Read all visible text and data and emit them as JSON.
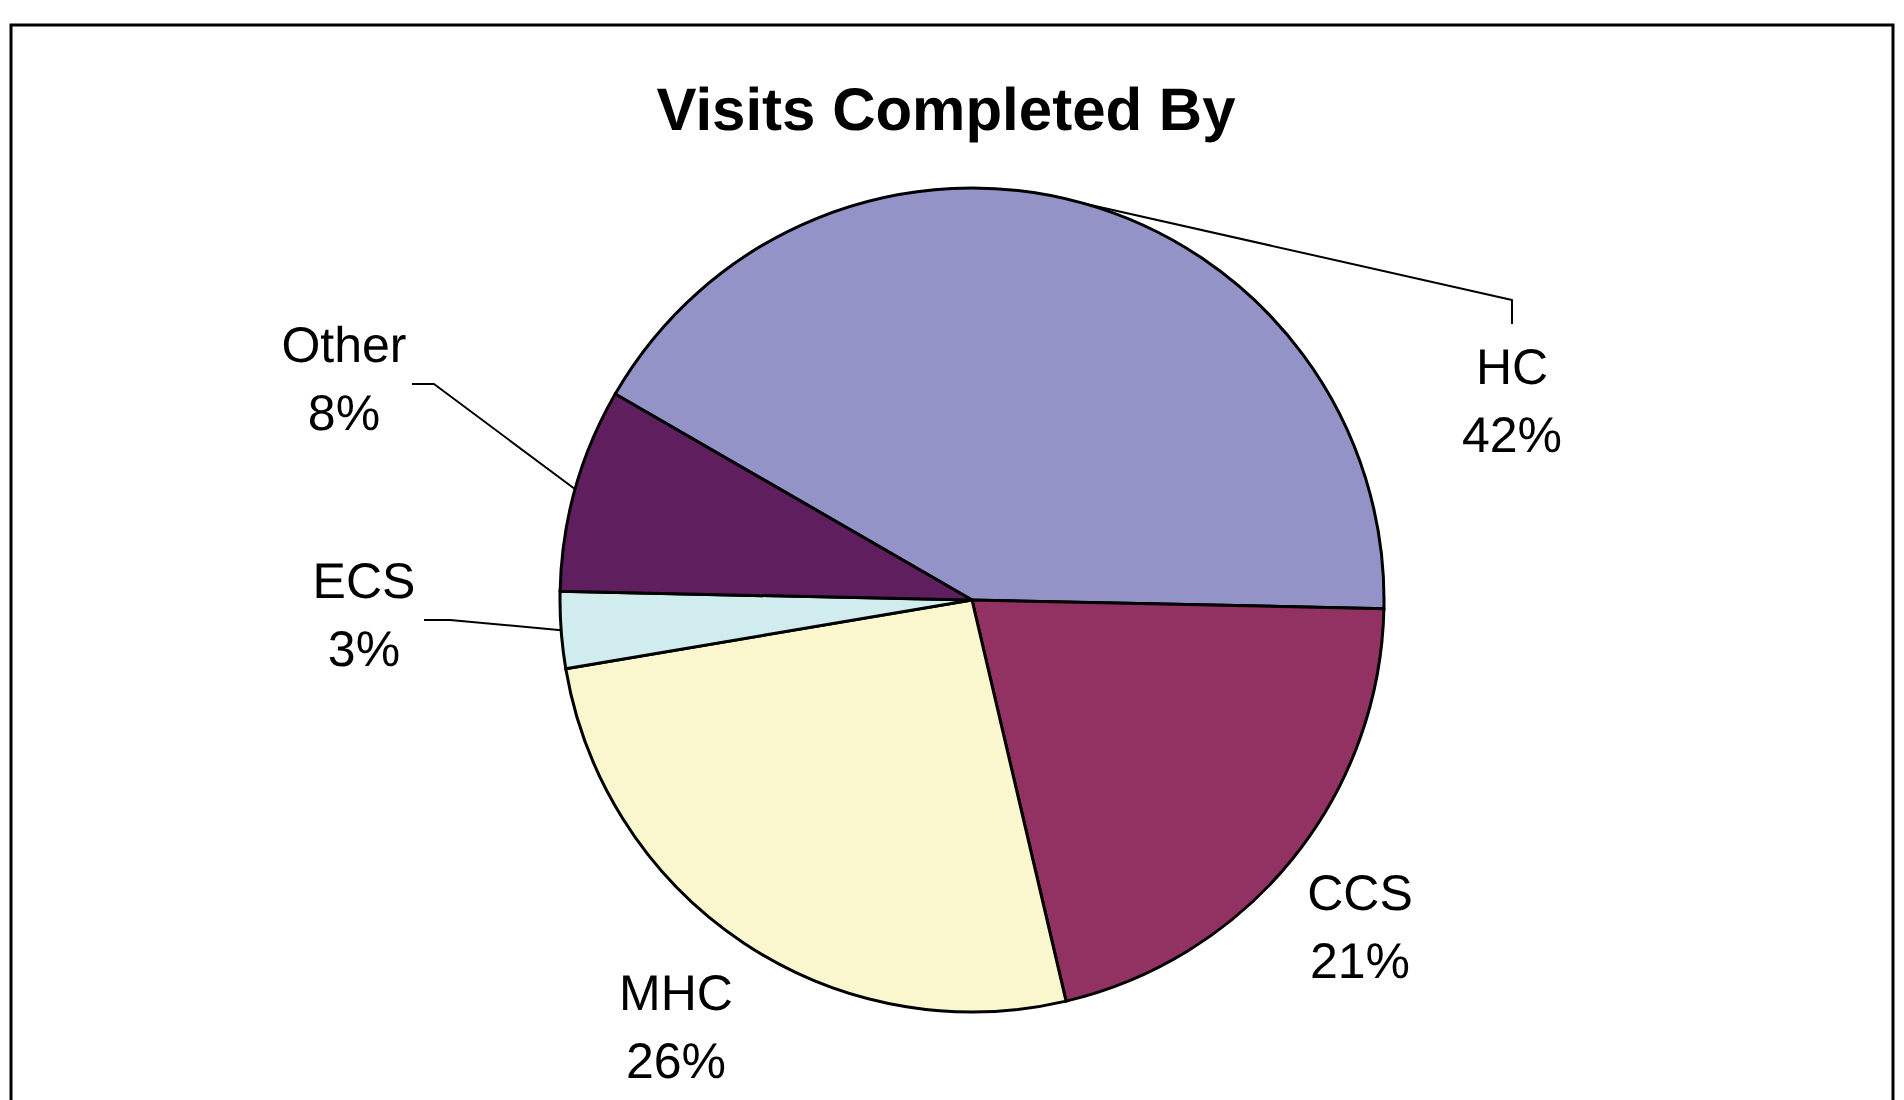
{
  "chart_data": {
    "type": "pie",
    "title": "Visits Completed By",
    "categories": [
      "HC",
      "CCS",
      "MHC",
      "ECS",
      "Other"
    ],
    "values": [
      42,
      21,
      26,
      3,
      8
    ],
    "colors": [
      "#9393c7",
      "#923262",
      "#faf7cf",
      "#d1ecef",
      "#5f1f5f"
    ],
    "value_labels": [
      "42%",
      "21%",
      "26%",
      "3%",
      "8%"
    ]
  }
}
